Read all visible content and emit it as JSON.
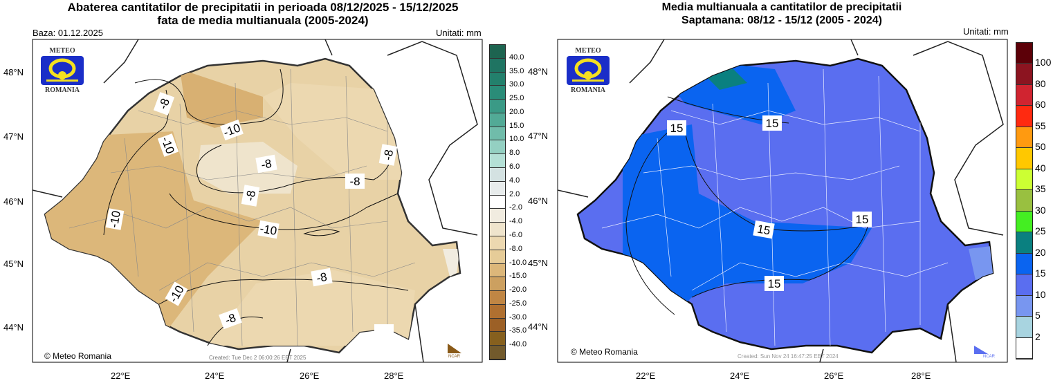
{
  "left": {
    "title1": "Abaterea cantitatilor de precipitatii in perioada 08/12/2025 - 15/12/2025",
    "title2": "fata de media multianuala (2005-2024)",
    "base": "Baza: 01.12.2025",
    "units": "Unitati: mm",
    "copyright": "© Meteo Romania",
    "created": "Created: Tue Dec  2 06:00:26 EET 2025",
    "ncar": "NCAR",
    "legend": [
      "40.0",
      "35.0",
      "30.0",
      "25.0",
      "20.0",
      "15.0",
      "10.0",
      "8.0",
      "6.0",
      "4.0",
      "2.0",
      "-2.0",
      "-4.0",
      "-6.0",
      "-8.0",
      "-10.0",
      "-15.0",
      "-20.0",
      "-25.0",
      "-30.0",
      "-35.0",
      "-40.0"
    ],
    "legend_colors": [
      "#1d6450",
      "#1f7462",
      "#23806c",
      "#2a8c78",
      "#3a9a86",
      "#52aa96",
      "#70bcaa",
      "#94d0c2",
      "#b4e0d6",
      "#d4e2e2",
      "#e8ecec",
      "#ffffff",
      "#f1ece0",
      "#efe4cc",
      "#ecd8b0",
      "#e6cc98",
      "#dcb77a",
      "#cca060",
      "#c08644",
      "#b07030",
      "#9c6026",
      "#86601e",
      "#725a2c"
    ],
    "contours": [
      "-8",
      "-10",
      "-10",
      "-8",
      "-8",
      "-8",
      "-8",
      "-10",
      "-10",
      "-10",
      "-8",
      "-8",
      "-8"
    ]
  },
  "right": {
    "title1": "Media multianuala a cantitatilor de precipitatii",
    "title2": "Saptamana: 08/12 - 15/12 (2005 - 2024)",
    "units": "Unitati: mm",
    "copyright": "© Meteo Romania",
    "created": "Created: Sun Nov 24 16:47:25 EET 2024",
    "ncar": "NCAR",
    "legend": [
      "100",
      "80",
      "60",
      "55",
      "50",
      "40",
      "35",
      "30",
      "25",
      "20",
      "15",
      "10",
      "5",
      "2"
    ],
    "legend_colors": [
      "#5c0008",
      "#8c1420",
      "#d02430",
      "#ff2a10",
      "#ff9a10",
      "#ffc800",
      "#ccff33",
      "#99c040",
      "#44ee22",
      "#0a8080",
      "#0a64f0",
      "#5a6ef0",
      "#7896f0",
      "#a8d4e0",
      "#ffffff"
    ],
    "contours": [
      "15",
      "15",
      "15",
      "15",
      "15",
      "15"
    ]
  },
  "logo": {
    "top": "METEO",
    "bottom": "ROMANIA"
  },
  "lat": [
    "48°N",
    "47°N",
    "46°N",
    "45°N",
    "44°N"
  ],
  "lon": [
    "22°E",
    "24°E",
    "26°E",
    "28°E"
  ]
}
